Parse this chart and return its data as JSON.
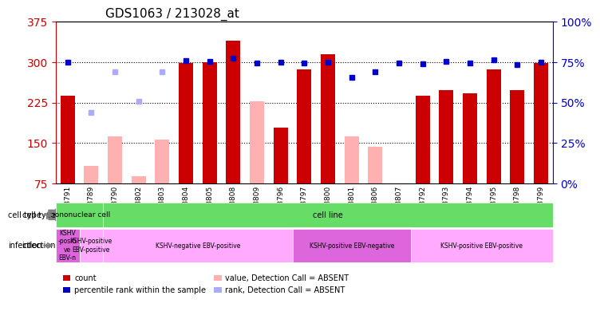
{
  "title": "GDS1063 / 213028_at",
  "samples": [
    "GSM38791",
    "GSM38789",
    "GSM38790",
    "GSM38802",
    "GSM38803",
    "GSM38804",
    "GSM38805",
    "GSM38808",
    "GSM38809",
    "GSM38796",
    "GSM38797",
    "GSM38800",
    "GSM38801",
    "GSM38806",
    "GSM38807",
    "GSM38792",
    "GSM38793",
    "GSM38794",
    "GSM38795",
    "GSM38798",
    "GSM38799"
  ],
  "count_values": [
    238,
    null,
    null,
    null,
    null,
    298,
    300,
    340,
    null,
    178,
    287,
    315,
    null,
    null,
    null,
    238,
    248,
    242,
    286,
    248,
    298
  ],
  "count_absent": [
    null,
    108,
    163,
    88,
    157,
    null,
    null,
    null,
    228,
    null,
    null,
    null,
    163,
    143,
    null,
    null,
    null,
    null,
    null,
    null,
    null
  ],
  "percentile_values": [
    300,
    null,
    null,
    null,
    null,
    303,
    302,
    308,
    298,
    300,
    298,
    300,
    272,
    283,
    298,
    297,
    302,
    298,
    305,
    295,
    300
  ],
  "percentile_absent": [
    null,
    207,
    283,
    228,
    283,
    null,
    null,
    null,
    null,
    null,
    null,
    null,
    null,
    null,
    null,
    null,
    null,
    null,
    null,
    null,
    null
  ],
  "ylim_left": [
    75,
    375
  ],
  "ylim_right": [
    0,
    100
  ],
  "yticks_left": [
    75,
    150,
    225,
    300,
    375
  ],
  "yticks_right": [
    0,
    25,
    50,
    75,
    100
  ],
  "bar_color_red": "#cc0000",
  "bar_color_pink": "#ffb0b0",
  "square_color_blue": "#0000cc",
  "square_color_lightblue": "#aaaaff",
  "cell_type_color": "#66dd66",
  "infection_color1": "#dd66dd",
  "infection_color2": "#ffaaff",
  "cell_type_labels": [
    {
      "label": "mononuclear cell",
      "start": 0,
      "end": 2
    },
    {
      "label": "cell line",
      "start": 2,
      "end": 21
    }
  ],
  "infection_labels": [
    {
      "label": "KSHV\n-positi\nve\nEBV-n",
      "start": 0,
      "end": 1,
      "color": "#dd66dd"
    },
    {
      "label": "KSHV-positive\nEBV-positive",
      "start": 1,
      "end": 2,
      "color": "#ffaaff"
    },
    {
      "label": "KSHV-negative EBV-positive",
      "start": 2,
      "end": 10,
      "color": "#ffaaff"
    },
    {
      "label": "KSHV-positive EBV-negative",
      "start": 10,
      "end": 15,
      "color": "#dd66dd"
    },
    {
      "label": "KSHV-positive EBV-positive",
      "start": 15,
      "end": 21,
      "color": "#ffaaff"
    }
  ],
  "legend_items": [
    {
      "label": "count",
      "color": "#cc0000",
      "marker": "s"
    },
    {
      "label": "percentile rank within the sample",
      "color": "#0000cc",
      "marker": "s"
    },
    {
      "label": "value, Detection Call = ABSENT",
      "color": "#ffb0b0",
      "marker": "s"
    },
    {
      "label": "rank, Detection Call = ABSENT",
      "color": "#aaaaff",
      "marker": "s"
    }
  ]
}
